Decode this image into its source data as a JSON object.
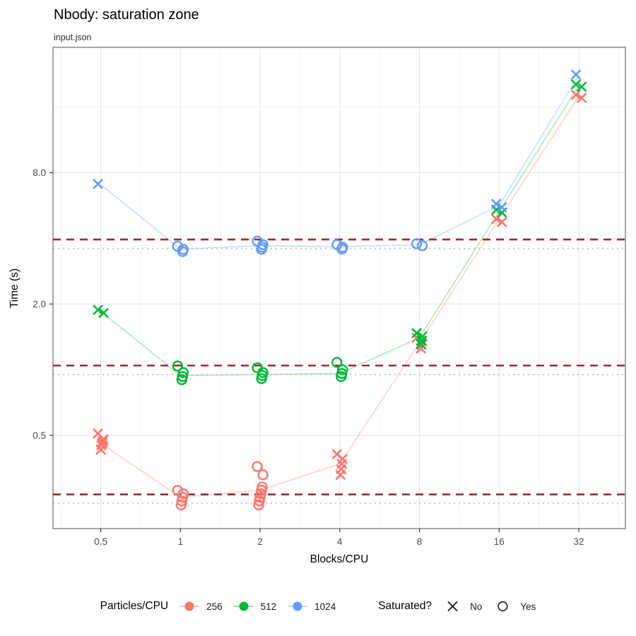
{
  "title": "Nbody: saturation zone",
  "subtitle": "input.json",
  "x_axis": {
    "label": "Blocks/CPU",
    "ticks": [
      0.5,
      1,
      2,
      4,
      8,
      16,
      32
    ],
    "tick_labels": [
      "0.5",
      "1",
      "2",
      "4",
      "8",
      "16",
      "32"
    ]
  },
  "y_axis": {
    "label": "Time (s)",
    "ticks": [
      0.5,
      2.0,
      8.0
    ],
    "tick_labels": [
      "0.5",
      "2.0",
      "8.0"
    ]
  },
  "legend": {
    "color_legend": {
      "title": "Particles/CPU",
      "items": [
        {
          "label": "256",
          "color": "#F8766D"
        },
        {
          "label": "512",
          "color": "#00BA38"
        },
        {
          "label": "1024",
          "color": "#619CFF"
        }
      ]
    },
    "shape_legend": {
      "title": "Saturated?",
      "items": [
        {
          "label": "No",
          "shape": "x"
        },
        {
          "label": "Yes",
          "shape": "circle"
        }
      ]
    }
  },
  "chart_data": {
    "type": "scatter",
    "title": "Nbody: saturation zone",
    "subtitle": "input.json",
    "xlabel": "Blocks/CPU",
    "ylabel": "Time (s)",
    "x_scale": "log2",
    "y_scale": "log2",
    "grid": true,
    "legend_position": "bottom",
    "x_ticks": [
      0.5,
      1,
      2,
      4,
      8,
      16,
      32
    ],
    "y_ticks": [
      0.5,
      2.0,
      8.0
    ],
    "x_minor": [
      0.354,
      0.707,
      1.414,
      2.828,
      5.657,
      11.314,
      22.627,
      45.255
    ],
    "y_minor": [
      0.25,
      1.0,
      4.0,
      16.0
    ],
    "xlim": [
      0.33,
      48
    ],
    "ylim": [
      0.187,
      30
    ],
    "series": [
      {
        "name": "256",
        "color": "#F8766D",
        "trend_x": [
          0.5,
          1,
          2,
          4,
          8,
          16,
          32
        ],
        "trend_y": [
          0.46,
          0.26,
          0.28,
          0.37,
          1.33,
          4.9,
          17.9
        ],
        "groups": [
          {
            "x": 0.5,
            "saturated": "No",
            "times": [
              0.51,
              0.48,
              0.47,
              0.46,
              0.45,
              0.43
            ]
          },
          {
            "x": 1,
            "saturated": "Yes",
            "times": [
              0.28,
              0.27,
              0.26,
              0.25,
              0.24
            ]
          },
          {
            "x": 2,
            "saturated": "Yes",
            "times": [
              0.36,
              0.33,
              0.29,
              0.28,
              0.27,
              0.26,
              0.25,
              0.24
            ]
          },
          {
            "x": 4,
            "saturated": "No",
            "times": [
              0.41,
              0.39,
              0.37,
              0.35,
              0.33
            ]
          },
          {
            "x": 8,
            "saturated": "No",
            "times": [
              1.4,
              1.35,
              1.3,
              1.25
            ]
          },
          {
            "x": 16,
            "saturated": "No",
            "times": [
              4.9,
              4.75
            ]
          },
          {
            "x": 32,
            "saturated": "No",
            "times": [
              18.2,
              17.6
            ]
          }
        ]
      },
      {
        "name": "512",
        "color": "#00BA38",
        "trend_x": [
          0.5,
          1,
          2,
          4,
          8,
          16,
          32
        ],
        "trend_y": [
          1.85,
          0.94,
          0.95,
          0.96,
          1.4,
          5.3,
          20.0
        ],
        "groups": [
          {
            "x": 0.5,
            "saturated": "No",
            "times": [
              1.88,
              1.82
            ]
          },
          {
            "x": 1,
            "saturated": "Yes",
            "times": [
              1.04,
              0.97,
              0.93,
              0.9
            ]
          },
          {
            "x": 2,
            "saturated": "Yes",
            "times": [
              1.02,
              0.97,
              0.94,
              0.91
            ]
          },
          {
            "x": 4,
            "saturated": "Yes",
            "times": [
              1.08,
              1.0,
              0.96,
              0.93
            ]
          },
          {
            "x": 8,
            "saturated": "No",
            "times": [
              1.47,
              1.42,
              1.36,
              1.31
            ]
          },
          {
            "x": 16,
            "saturated": "No",
            "times": [
              5.4,
              5.25
            ]
          },
          {
            "x": 32,
            "saturated": "No",
            "times": [
              20.3,
              19.8
            ]
          }
        ]
      },
      {
        "name": "1024",
        "color": "#619CFF",
        "trend_x": [
          0.5,
          1,
          2,
          4,
          8,
          16,
          32
        ],
        "trend_y": [
          7.05,
          3.57,
          3.7,
          3.66,
          3.74,
          5.65,
          22.4
        ],
        "groups": [
          {
            "x": 0.5,
            "saturated": "No",
            "times": [
              7.1
            ]
          },
          {
            "x": 1,
            "saturated": "Yes",
            "times": [
              3.68,
              3.56,
              3.48
            ]
          },
          {
            "x": 2,
            "saturated": "Yes",
            "times": [
              3.88,
              3.74,
              3.64,
              3.56
            ]
          },
          {
            "x": 4,
            "saturated": "Yes",
            "times": [
              3.74,
              3.64,
              3.57
            ]
          },
          {
            "x": 8,
            "saturated": "Yes",
            "times": [
              3.78,
              3.7
            ]
          },
          {
            "x": 16,
            "saturated": "No",
            "times": [
              5.75,
              5.55
            ]
          },
          {
            "x": 32,
            "saturated": "No",
            "times": [
              22.5
            ]
          }
        ]
      }
    ],
    "reference_lines": [
      {
        "series": "256",
        "dashed_threshold": 0.268,
        "dotted_baseline": 0.244
      },
      {
        "series": "512",
        "dashed_threshold": 1.045,
        "dotted_baseline": 0.95
      },
      {
        "series": "1024",
        "dashed_threshold": 3.95,
        "dotted_baseline": 3.59
      }
    ],
    "reference_line_styles": {
      "dashed_color": "#9C2C31",
      "dotted_color": "#C6C6C6"
    }
  }
}
